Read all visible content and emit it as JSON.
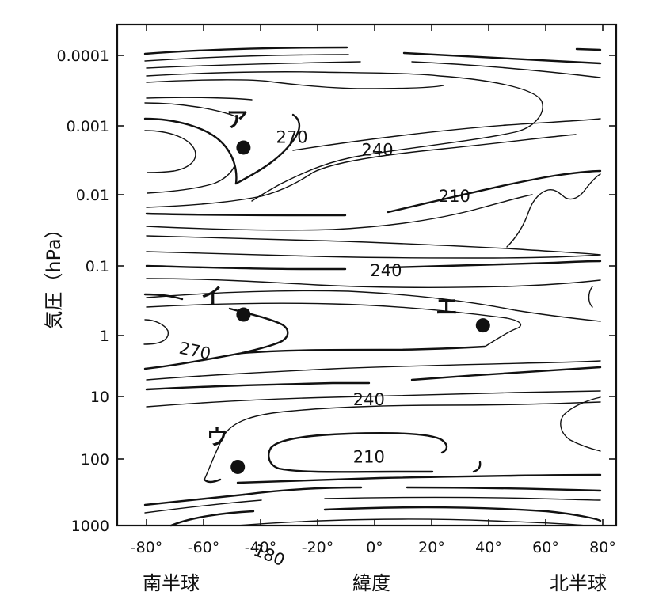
{
  "chart_data": {
    "type": "contour",
    "xlabel": "緯度",
    "ylabel": "気圧（hPa）",
    "x_ticks": [
      {
        "value": -80,
        "label": "-80°"
      },
      {
        "value": -60,
        "label": "-60°"
      },
      {
        "value": -40,
        "label": "-40°"
      },
      {
        "value": -20,
        "label": "-20°"
      },
      {
        "value": 0,
        "label": "0°"
      },
      {
        "value": 20,
        "label": "20°"
      },
      {
        "value": 40,
        "label": "40°"
      },
      {
        "value": 60,
        "label": "60°"
      },
      {
        "value": 80,
        "label": "80°"
      }
    ],
    "y_ticks": [
      {
        "value": 0.0001,
        "label": "0.0001"
      },
      {
        "value": 0.001,
        "label": "0.001"
      },
      {
        "value": 0.01,
        "label": "0.01"
      },
      {
        "value": 0.1,
        "label": "0.1"
      },
      {
        "value": 1,
        "label": "1"
      },
      {
        "value": 10,
        "label": "10"
      },
      {
        "value": 100,
        "label": "100"
      },
      {
        "value": 1000,
        "label": "1000"
      }
    ],
    "hemisphere_labels": {
      "south": "南半球",
      "north": "北半球"
    },
    "xlim": [
      -90,
      90
    ],
    "ylim": [
      1000,
      4e-05
    ],
    "y_scale": "log",
    "y_inverted": true,
    "contour_labels": [
      {
        "text": "210",
        "lat": 3,
        "p": 0.0001
      },
      {
        "text": "180",
        "lat": -37,
        "p": 0.0007
      },
      {
        "text": "210",
        "lat": -2,
        "p": 0.018
      },
      {
        "text": "240",
        "lat": -2,
        "p": 0.12
      },
      {
        "text": "270",
        "lat": -63,
        "p": 0.6
      },
      {
        "text": "240",
        "lat": 4,
        "p": 8.5
      },
      {
        "text": "210",
        "lat": 28,
        "p": 100
      },
      {
        "text": "240",
        "lat": 1,
        "p": 460
      },
      {
        "text": "270",
        "lat": -29,
        "p": 700
      }
    ],
    "markers": [
      {
        "label": "ア",
        "lat": -46,
        "p": 500
      },
      {
        "label": "イ",
        "lat": -46,
        "p": 2.0
      },
      {
        "label": "ウ",
        "lat": -48,
        "p": 0.013
      },
      {
        "label": "エ",
        "lat": 38,
        "p": 1.4
      }
    ]
  }
}
